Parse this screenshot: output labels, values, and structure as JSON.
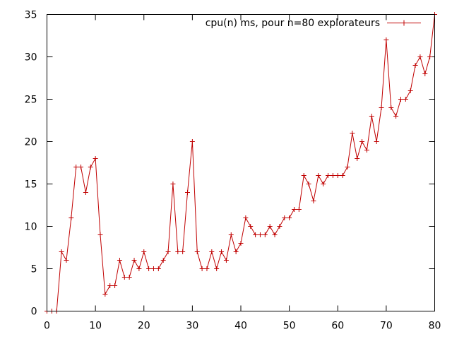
{
  "chart_data": {
    "type": "line",
    "title": "",
    "xlabel": "",
    "ylabel": "",
    "xlim": [
      0,
      80
    ],
    "ylim": [
      0,
      35
    ],
    "x_ticks": [
      0,
      10,
      20,
      30,
      40,
      50,
      60,
      70,
      80
    ],
    "y_ticks": [
      0,
      5,
      10,
      15,
      20,
      25,
      30,
      35
    ],
    "grid": false,
    "legend_position": "top-right",
    "colors": {
      "series": "#c00000",
      "axes": "#000000"
    },
    "series": [
      {
        "name": "cpu(n) ms, pour n=80 explorateurs",
        "x": [
          0,
          1,
          2,
          3,
          4,
          5,
          6,
          7,
          8,
          9,
          10,
          11,
          12,
          13,
          14,
          15,
          16,
          17,
          18,
          19,
          20,
          21,
          22,
          23,
          24,
          25,
          26,
          27,
          28,
          29,
          30,
          31,
          32,
          33,
          34,
          35,
          36,
          37,
          38,
          39,
          40,
          41,
          42,
          43,
          44,
          45,
          46,
          47,
          48,
          49,
          50,
          51,
          52,
          53,
          54,
          55,
          56,
          57,
          58,
          59,
          60,
          61,
          62,
          63,
          64,
          65,
          66,
          67,
          68,
          69,
          70,
          71,
          72,
          73,
          74,
          75,
          76,
          77,
          78,
          79,
          80
        ],
        "y": [
          0,
          0,
          0,
          7,
          6,
          11,
          17,
          17,
          14,
          17,
          18,
          9,
          2,
          3,
          3,
          6,
          4,
          4,
          6,
          5,
          7,
          5,
          5,
          5,
          6,
          7,
          15,
          7,
          7,
          14,
          20,
          7,
          5,
          5,
          7,
          5,
          7,
          6,
          9,
          7,
          8,
          11,
          10,
          9,
          9,
          9,
          10,
          9,
          10,
          11,
          11,
          12,
          12,
          16,
          15,
          13,
          16,
          15,
          16,
          16,
          16,
          16,
          17,
          21,
          18,
          20,
          19,
          23,
          20,
          24,
          32,
          24,
          23,
          25,
          25,
          26,
          29,
          30,
          28,
          30,
          35
        ]
      }
    ]
  }
}
